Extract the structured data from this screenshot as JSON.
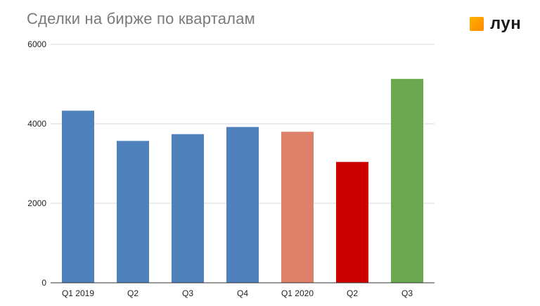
{
  "header": {
    "title": "Сделки на бирже по кварталам",
    "logo_text": "лун",
    "logo_color": "#ff9800"
  },
  "chart_data": {
    "type": "bar",
    "title": "Сделки на бирже по кварталам",
    "xlabel": "",
    "ylabel": "",
    "categories": [
      "Q1 2019",
      "Q2",
      "Q3",
      "Q4",
      "Q1 2020",
      "Q2",
      "Q3"
    ],
    "values": [
      4330,
      3570,
      3740,
      3920,
      3800,
      3040,
      5130
    ],
    "colors": [
      "#4f81bd",
      "#4f81bd",
      "#4f81bd",
      "#4f81bd",
      "#dd806a",
      "#cc0000",
      "#6aa84f"
    ],
    "ylim": [
      0,
      6000
    ],
    "yticks": [
      0,
      2000,
      4000,
      6000
    ],
    "grid": true,
    "legend": "none"
  }
}
